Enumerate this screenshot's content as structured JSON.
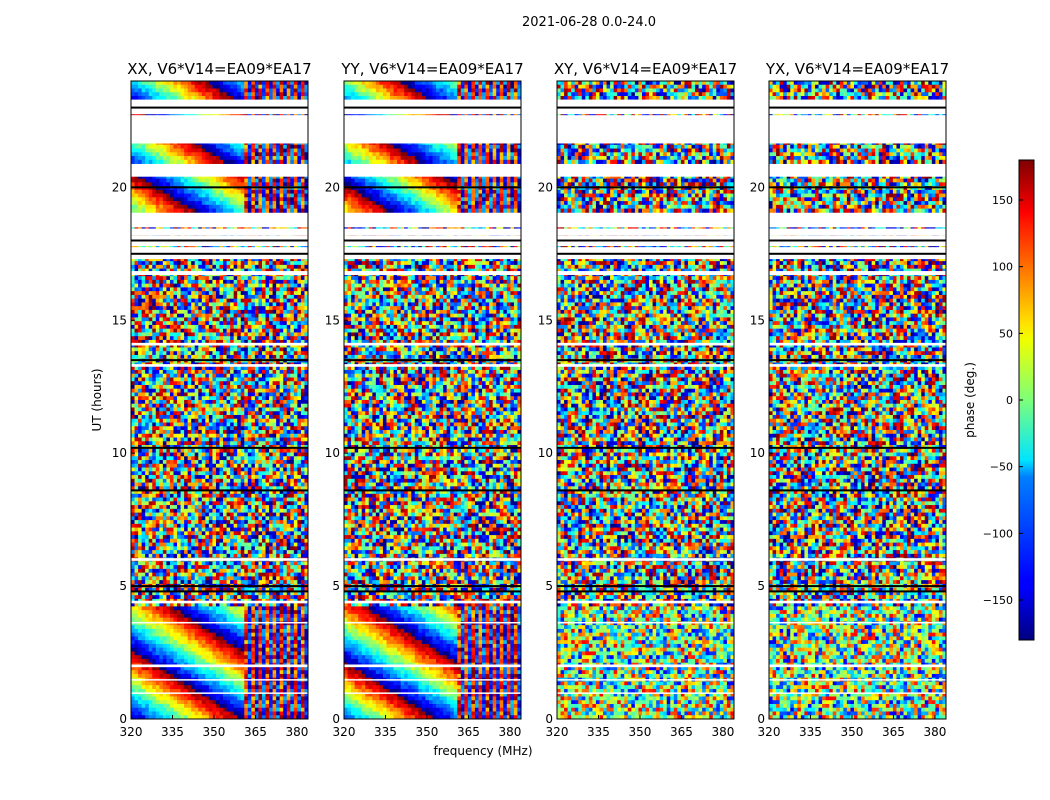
{
  "figure": {
    "suptitle": "2021-06-28 0.0-24.0",
    "xlabel": "frequency (MHz)",
    "ylabel": "UT (hours)",
    "colorbar_label": "phase (deg.)"
  },
  "chart_data": {
    "type": "heatmap",
    "title": "2021-06-28 0.0-24.0",
    "xlabel": "frequency (MHz)",
    "ylabel": "UT (hours)",
    "xlim": [
      320,
      384
    ],
    "ylim": [
      0,
      24
    ],
    "xticks": [
      320,
      335,
      350,
      365,
      380
    ],
    "yticks": [
      0,
      5,
      10,
      15,
      20
    ],
    "colorbar": {
      "label": "phase (deg.)",
      "range": [
        -180,
        180
      ],
      "ticks": [
        -150,
        -100,
        -50,
        0,
        50,
        100,
        150
      ],
      "colormap": "jet"
    },
    "panels": [
      {
        "title": "XX, V6*V14=EA09*EA17",
        "pol": "XX",
        "coherent_freq_range": [
          320,
          361
        ]
      },
      {
        "title": "YY, V6*V14=EA09*EA17",
        "pol": "YY",
        "coherent_freq_range": [
          320,
          361
        ]
      },
      {
        "title": "XY, V6*V14=EA09*EA17",
        "pol": "XY",
        "coherent_freq_range": []
      },
      {
        "title": "YX, V6*V14=EA09*EA17",
        "pol": "YX",
        "coherent_freq_range": []
      }
    ],
    "blank_time_ranges": [
      [
        22.8,
        23.2
      ],
      [
        23.5,
        23.9
      ],
      [
        21.8,
        22.0
      ],
      [
        20.3,
        20.6
      ],
      [
        17.9,
        18.8
      ],
      [
        16.6,
        17.0
      ],
      [
        0.0,
        0.0
      ]
    ],
    "grid": false
  }
}
